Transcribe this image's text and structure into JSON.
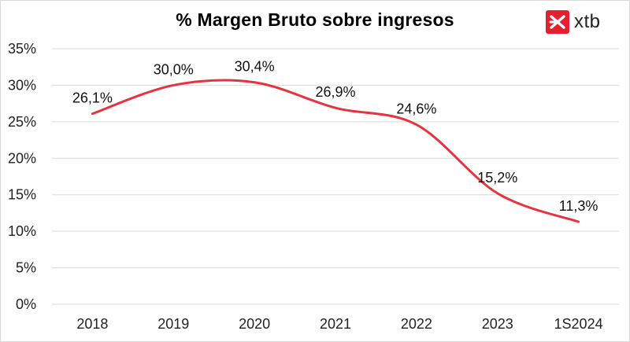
{
  "brand": {
    "name": "xtb",
    "accent": "#e5202e"
  },
  "chart_data": {
    "type": "line",
    "title": "% Margen Bruto sobre ingresos",
    "xlabel": "",
    "ylabel": "",
    "categories": [
      "2018",
      "2019",
      "2020",
      "2021",
      "2022",
      "2023",
      "1S2024"
    ],
    "series": [
      {
        "values": [
          26.1,
          30.0,
          30.4,
          26.9,
          24.6,
          15.2,
          11.3
        ],
        "color": "#e8323d"
      }
    ],
    "data_labels": [
      "26,1%",
      "30,0%",
      "30,4%",
      "26,9%",
      "24,6%",
      "15,2%",
      "11,3%"
    ],
    "y_ticks": [
      "0%",
      "5%",
      "10%",
      "15%",
      "20%",
      "25%",
      "30%",
      "35%"
    ],
    "ylim": [
      0,
      35
    ],
    "grid": "horizontal",
    "line_style": "smooth",
    "legend": "none"
  }
}
